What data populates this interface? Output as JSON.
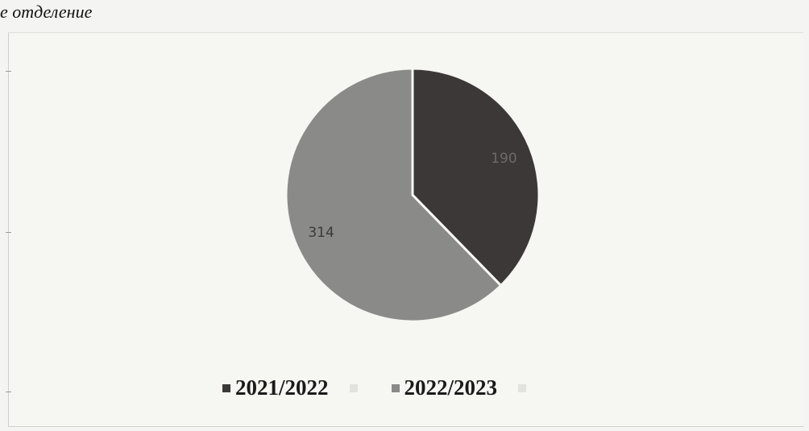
{
  "title": "е отделение",
  "chart_data": {
    "type": "pie",
    "slices": [
      {
        "label": "2021/2022",
        "value": 190,
        "color": "#3c3838"
      },
      {
        "label": "2022/2023",
        "value": 314,
        "color": "#8a8a88"
      }
    ],
    "data_labels": [
      "190",
      "314"
    ],
    "legend": [
      "2021/2022",
      "2022/2023"
    ],
    "legend_placement": "bottom"
  }
}
